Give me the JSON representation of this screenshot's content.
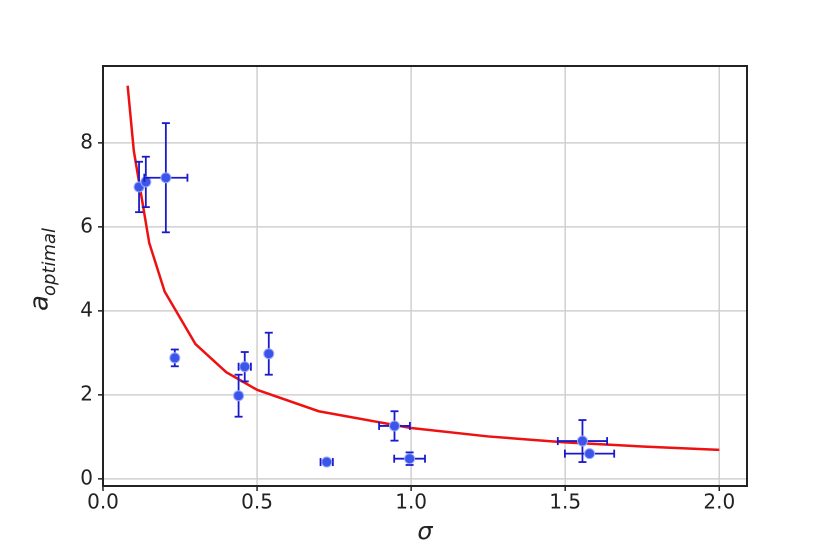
{
  "chart_data": {
    "type": "scatter",
    "xlabel": "σ",
    "ylabel": "a",
    "ylabel_sub": "optimal",
    "xlim": [
      0.0,
      2.09
    ],
    "ylim": [
      -0.17,
      9.83
    ],
    "xticks": [
      {
        "value": 0,
        "label": "0.0"
      },
      0.5,
      {
        "value": 1,
        "label": "1.0"
      },
      1.5,
      {
        "value": 2,
        "label": "2.0"
      }
    ],
    "yticks": [
      0,
      2,
      4,
      6,
      8
    ],
    "grid": true,
    "series": [
      {
        "type": "line",
        "color": "#ee1111",
        "x": [
          0.08,
          0.1,
          0.15,
          0.2,
          0.3,
          0.4,
          0.5,
          0.7,
          1.0,
          1.25,
          1.5,
          1.75,
          2.0
        ],
        "values": [
          9.36,
          7.81,
          5.62,
          4.46,
          3.21,
          2.54,
          2.12,
          1.61,
          1.21,
          1.01,
          0.87,
          0.77,
          0.69
        ]
      },
      {
        "type": "errorbar",
        "color": "#1a1acc",
        "marker_color": "#3a55e8",
        "x": [
          0.117,
          0.139,
          0.204,
          0.233,
          0.44,
          0.46,
          0.538,
          0.726,
          0.946,
          0.995,
          1.556,
          1.579
        ],
        "values": [
          6.95,
          7.07,
          7.17,
          2.88,
          1.98,
          2.67,
          2.98,
          0.4,
          1.26,
          0.48,
          0.9,
          0.6
        ],
        "xerr": [
          0.01,
          0.01,
          0.07,
          0.01,
          0.01,
          0.02,
          0.005,
          0.02,
          0.05,
          0.05,
          0.08,
          0.08
        ],
        "yerr": [
          0.6,
          0.6,
          1.3,
          0.2,
          0.5,
          0.35,
          0.5,
          0.05,
          0.35,
          0.15,
          0.5,
          0.05
        ]
      }
    ]
  }
}
